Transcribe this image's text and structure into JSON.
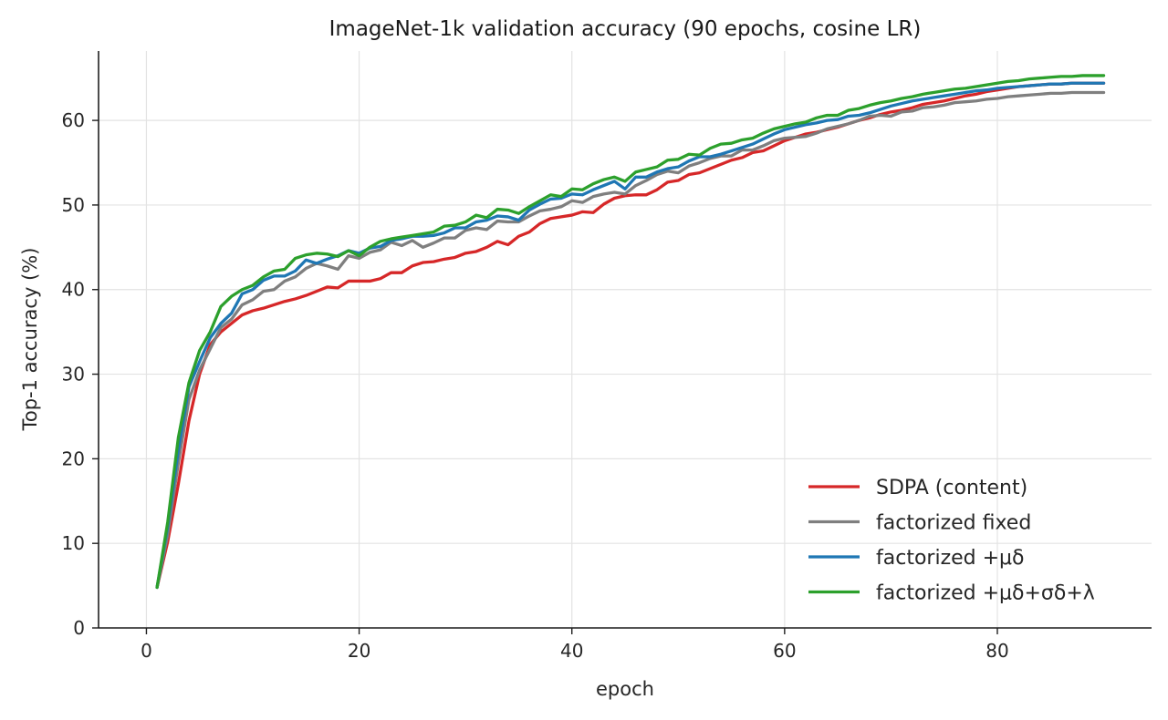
{
  "chart_data": {
    "type": "line",
    "title": "ImageNet-1k validation accuracy (90 epochs, cosine LR)",
    "xlabel": "epoch",
    "ylabel": "Top-1 accuracy (%)",
    "xlim": [
      -4.5,
      94.5
    ],
    "ylim": [
      0,
      68.2
    ],
    "xticks": [
      0,
      20,
      40,
      60,
      80
    ],
    "yticks": [
      0,
      10,
      20,
      30,
      40,
      50,
      60
    ],
    "grid": true,
    "legend_position": "lower-right",
    "x": [
      1,
      2,
      3,
      4,
      5,
      6,
      7,
      8,
      9,
      10,
      11,
      12,
      13,
      14,
      15,
      16,
      17,
      18,
      19,
      20,
      21,
      22,
      23,
      24,
      25,
      26,
      27,
      28,
      29,
      30,
      31,
      32,
      33,
      34,
      35,
      36,
      37,
      38,
      39,
      40,
      41,
      42,
      43,
      44,
      45,
      46,
      47,
      48,
      49,
      50,
      51,
      52,
      53,
      54,
      55,
      56,
      57,
      58,
      59,
      60,
      61,
      62,
      63,
      64,
      65,
      66,
      67,
      68,
      69,
      70,
      71,
      72,
      73,
      74,
      75,
      76,
      77,
      78,
      79,
      80,
      81,
      82,
      83,
      84,
      85,
      86,
      87,
      88,
      89,
      90
    ],
    "series": [
      {
        "name": "SDPA (content)",
        "color": "#d62728",
        "values": [
          4.8,
          10.2,
          17.0,
          24.5,
          30.0,
          33.5,
          35.0,
          36.0,
          37.0,
          37.5,
          37.8,
          38.2,
          38.6,
          38.9,
          39.3,
          39.8,
          40.3,
          40.2,
          41.0,
          41.0,
          41.0,
          41.3,
          42.0,
          42.0,
          42.8,
          43.2,
          43.3,
          43.6,
          43.8,
          44.3,
          44.5,
          45.0,
          45.7,
          45.3,
          46.3,
          46.8,
          47.8,
          48.4,
          48.6,
          48.8,
          49.2,
          49.1,
          50.1,
          50.8,
          51.1,
          51.2,
          51.2,
          51.8,
          52.7,
          52.9,
          53.6,
          53.8,
          54.3,
          54.8,
          55.3,
          55.6,
          56.2,
          56.4,
          57.0,
          57.6,
          58.0,
          58.4,
          58.6,
          58.9,
          59.2,
          59.6,
          60.0,
          60.3,
          60.7,
          61.0,
          61.2,
          61.5,
          61.9,
          62.1,
          62.3,
          62.6,
          62.9,
          63.1,
          63.4,
          63.6,
          63.8,
          64.0,
          64.1,
          64.2,
          64.3,
          64.3,
          64.4,
          64.4,
          64.4,
          64.4
        ]
      },
      {
        "name": "factorized fixed",
        "color": "#7f7f7f",
        "values": [
          4.8,
          11.0,
          19.5,
          27.0,
          30.5,
          33.0,
          35.5,
          36.5,
          38.2,
          38.8,
          39.8,
          40.0,
          41.0,
          41.5,
          42.5,
          43.1,
          42.8,
          42.4,
          44.0,
          43.7,
          44.4,
          44.7,
          45.6,
          45.2,
          45.8,
          45.0,
          45.5,
          46.1,
          46.1,
          47.0,
          47.3,
          47.1,
          48.1,
          48.0,
          48.0,
          48.7,
          49.3,
          49.5,
          49.8,
          50.5,
          50.3,
          51.0,
          51.3,
          51.5,
          51.3,
          52.3,
          52.9,
          53.6,
          54.0,
          53.8,
          54.6,
          55.0,
          55.5,
          55.8,
          55.8,
          56.5,
          56.5,
          57.0,
          57.6,
          57.9,
          58.0,
          58.1,
          58.5,
          59.0,
          59.3,
          59.6,
          60.0,
          60.5,
          60.6,
          60.5,
          61.0,
          61.1,
          61.5,
          61.6,
          61.8,
          62.1,
          62.2,
          62.3,
          62.5,
          62.6,
          62.8,
          62.9,
          63.0,
          63.1,
          63.2,
          63.2,
          63.3,
          63.3,
          63.3,
          63.3
        ]
      },
      {
        "name": "factorized +μδ",
        "color": "#1f77b4",
        "values": [
          4.8,
          12.0,
          21.0,
          28.5,
          31.5,
          34.3,
          36.0,
          37.2,
          39.5,
          40.0,
          41.1,
          41.6,
          41.6,
          42.2,
          43.5,
          43.1,
          43.6,
          44.0,
          44.6,
          44.3,
          44.9,
          45.1,
          45.8,
          46.0,
          46.3,
          46.3,
          46.4,
          46.7,
          47.3,
          47.3,
          48.0,
          48.2,
          48.7,
          48.6,
          48.2,
          49.4,
          50.1,
          50.7,
          50.8,
          51.3,
          51.2,
          51.8,
          52.3,
          52.8,
          51.9,
          53.3,
          53.3,
          53.9,
          54.3,
          54.5,
          55.2,
          55.7,
          55.7,
          56.0,
          56.4,
          56.8,
          57.2,
          57.8,
          58.4,
          58.9,
          59.2,
          59.5,
          59.7,
          60.0,
          60.1,
          60.5,
          60.6,
          60.9,
          61.3,
          61.7,
          62.0,
          62.3,
          62.5,
          62.7,
          62.9,
          63.1,
          63.3,
          63.5,
          63.6,
          63.8,
          63.9,
          64.0,
          64.1,
          64.2,
          64.3,
          64.3,
          64.4,
          64.4,
          64.4,
          64.4
        ]
      },
      {
        "name": "factorized +μδ+σδ+λ",
        "color": "#2ca02c",
        "values": [
          4.8,
          12.5,
          22.5,
          29.0,
          32.8,
          35.0,
          38.0,
          39.2,
          40.0,
          40.5,
          41.5,
          42.2,
          42.4,
          43.7,
          44.1,
          44.3,
          44.2,
          43.9,
          44.6,
          44.0,
          45.0,
          45.7,
          46.0,
          46.2,
          46.4,
          46.6,
          46.8,
          47.5,
          47.6,
          48.0,
          48.8,
          48.5,
          49.5,
          49.4,
          49.0,
          49.8,
          50.5,
          51.2,
          51.0,
          51.9,
          51.8,
          52.5,
          53.0,
          53.3,
          52.8,
          53.9,
          54.2,
          54.5,
          55.3,
          55.4,
          56.0,
          55.9,
          56.7,
          57.2,
          57.3,
          57.7,
          57.9,
          58.5,
          59.0,
          59.3,
          59.6,
          59.8,
          60.3,
          60.6,
          60.6,
          61.2,
          61.4,
          61.8,
          62.1,
          62.3,
          62.6,
          62.8,
          63.1,
          63.3,
          63.5,
          63.7,
          63.8,
          64.0,
          64.2,
          64.4,
          64.6,
          64.7,
          64.9,
          65.0,
          65.1,
          65.2,
          65.2,
          65.3,
          65.3,
          65.3
        ]
      }
    ]
  }
}
